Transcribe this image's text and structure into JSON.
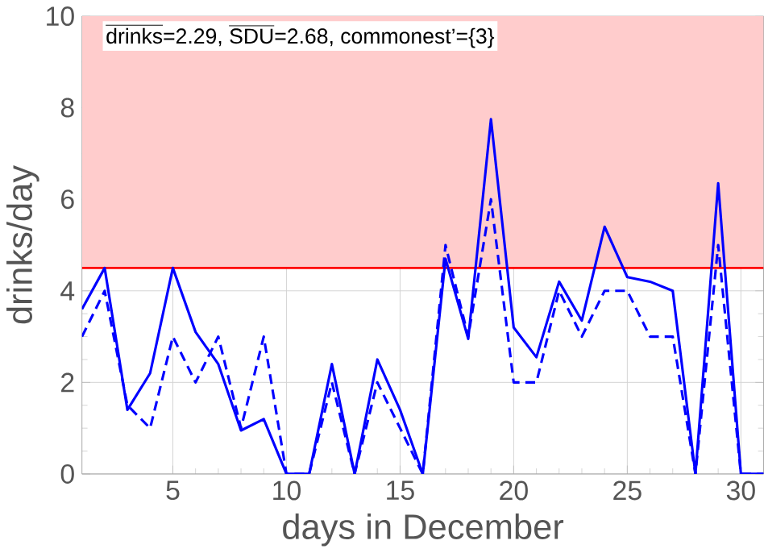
{
  "chart_data": {
    "type": "line",
    "xlabel": "days in December",
    "ylabel": "drinks/day",
    "x": [
      1,
      2,
      3,
      4,
      5,
      6,
      7,
      8,
      9,
      10,
      11,
      12,
      13,
      14,
      15,
      16,
      17,
      18,
      19,
      20,
      21,
      22,
      23,
      24,
      25,
      26,
      27,
      28,
      29,
      30,
      31
    ],
    "series": [
      {
        "color": "#0000ff",
        "line_style": "solid",
        "values": [
          3.6,
          4.5,
          1.4,
          2.2,
          4.5,
          3.1,
          2.4,
          0.95,
          1.2,
          0,
          0,
          2.4,
          0,
          2.5,
          1.4,
          0,
          4.7,
          2.95,
          7.75,
          3.2,
          2.55,
          4.2,
          3.35,
          5.4,
          4.3,
          4.2,
          4.0,
          0,
          6.35,
          0,
          0
        ]
      },
      {
        "color": "#0000ff",
        "line_style": "dashed",
        "values": [
          3.0,
          4.0,
          1.5,
          1.0,
          3.0,
          2.0,
          3.0,
          1.0,
          3.0,
          0,
          0,
          2.0,
          0,
          2.0,
          1.0,
          0,
          5.0,
          3.0,
          6.0,
          2.0,
          2.0,
          4.0,
          3.0,
          4.0,
          4.0,
          3.0,
          3.0,
          0,
          5.0,
          0,
          0
        ]
      }
    ],
    "xlim": [
      1,
      31
    ],
    "ylim": [
      0,
      10
    ],
    "xticks": [
      5,
      10,
      15,
      20,
      25,
      30
    ],
    "yticks": [
      0,
      2,
      4,
      6,
      8,
      10
    ],
    "grid": true,
    "ref_lines": [
      {
        "axis": "y",
        "value": 4.5,
        "color": "#ff0000"
      }
    ],
    "bands": [
      {
        "axis": "y",
        "from": 4.5,
        "to": 10,
        "color": "#ffcccc"
      }
    ],
    "annotations": [
      "\\overline{\\hbox{drinks}}\\hbox{=2.29, }\\overline{\\hbox{SDU}}\\hbox{=2.68, commonest'=\\{3\\}}"
    ]
  }
}
